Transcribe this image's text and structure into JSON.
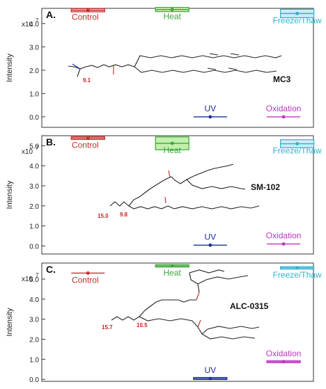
{
  "chart_data": [
    {
      "panel_label": "A.",
      "type": "scatter",
      "ylabel": "Intensity",
      "y_exponent": "x10",
      "y_exponent_power": "7",
      "yticks": [
        "0.0",
        "1.0",
        "2.0",
        "3.0",
        "4.0"
      ],
      "ylim": [
        -0.45,
        4.65
      ],
      "xlim": [
        0,
        1
      ],
      "molecule": "MC3",
      "pka_labels": [
        "9.1"
      ],
      "series": [
        {
          "name": "Control",
          "x": 0.17,
          "y": 4.57,
          "err": 0.07,
          "color": "#cc2a2a",
          "fill": "#f3c9c9",
          "style": "box"
        },
        {
          "name": "Heat",
          "x": 0.48,
          "y": 4.6,
          "err": 0.09,
          "color": "#3aa63a",
          "fill": "#c4efae",
          "style": "box"
        },
        {
          "name": "Freeze/Thaw",
          "x": 0.94,
          "y": 4.43,
          "err": 0.18,
          "color": "#2eb2cf",
          "fill": "#c9eef6",
          "style": "box"
        },
        {
          "name": "UV",
          "x": 0.62,
          "y": 0.0,
          "err": 0,
          "color": "#1f2f9e",
          "style": "line"
        },
        {
          "name": "Oxidation",
          "x": 0.89,
          "y": 0.0,
          "err": 0,
          "color": "#c233c2",
          "style": "line"
        }
      ]
    },
    {
      "panel_label": "B.",
      "type": "scatter",
      "ylabel": "Intensity",
      "y_exponent": "x10",
      "y_exponent_power": "7",
      "yticks": [
        "0.0",
        "1.0",
        "2.0",
        "3.0",
        "4.0",
        "5.0"
      ],
      "ylim": [
        -0.4,
        5.5
      ],
      "xlim": [
        0,
        1
      ],
      "molecule": "SM-102",
      "pka_labels": [
        "15.0",
        "9.8"
      ],
      "series": [
        {
          "name": "Control",
          "x": 0.17,
          "y": 5.38,
          "err": 0.07,
          "color": "#cc2a2a",
          "fill": "#f3c9c9",
          "style": "box"
        },
        {
          "name": "Heat",
          "x": 0.48,
          "y": 5.12,
          "err": 0.32,
          "color": "#3aa63a",
          "fill": "#c4efae",
          "style": "box"
        },
        {
          "name": "Freeze/Thaw",
          "x": 0.94,
          "y": 5.1,
          "err": 0.2,
          "color": "#2eb2cf",
          "fill": "#c9eef6",
          "style": "box"
        },
        {
          "name": "UV",
          "x": 0.62,
          "y": 0.04,
          "err": 0,
          "color": "#1f2f9e",
          "style": "line"
        },
        {
          "name": "Oxidation",
          "x": 0.89,
          "y": 0.1,
          "err": 0,
          "color": "#c233c2",
          "style": "line"
        }
      ]
    },
    {
      "panel_label": "C.",
      "type": "scatter",
      "ylabel": "Intensity",
      "y_exponent": "x10",
      "y_exponent_power": "7",
      "yticks": [
        "0.0",
        "1.0",
        "2.0",
        "3.0",
        "4.0",
        "5.0"
      ],
      "ylim": [
        -0.1,
        5.8
      ],
      "xlim": [
        0,
        1
      ],
      "molecule": "ALC-0315",
      "pka_labels": [
        "15.7",
        "10.5"
      ],
      "series": [
        {
          "name": "Control",
          "x": 0.17,
          "y": 5.3,
          "err": 0,
          "color": "#cc2a2a",
          "fill": "#f3c9c9",
          "style": "line"
        },
        {
          "name": "Heat",
          "x": 0.48,
          "y": 5.66,
          "err": 0.06,
          "color": "#3aa63a",
          "fill": "#c4efae",
          "style": "box"
        },
        {
          "name": "Freeze/Thaw",
          "x": 0.94,
          "y": 5.56,
          "err": 0.06,
          "color": "#2eb2cf",
          "fill": "#c9eef6",
          "style": "box"
        },
        {
          "name": "UV",
          "x": 0.62,
          "y": 0.04,
          "err": 0.04,
          "color": "#1f2f9e",
          "style": "box"
        },
        {
          "name": "Oxidation",
          "x": 0.89,
          "y": 0.88,
          "err": 0.04,
          "color": "#c233c2",
          "style": "box"
        }
      ]
    }
  ]
}
